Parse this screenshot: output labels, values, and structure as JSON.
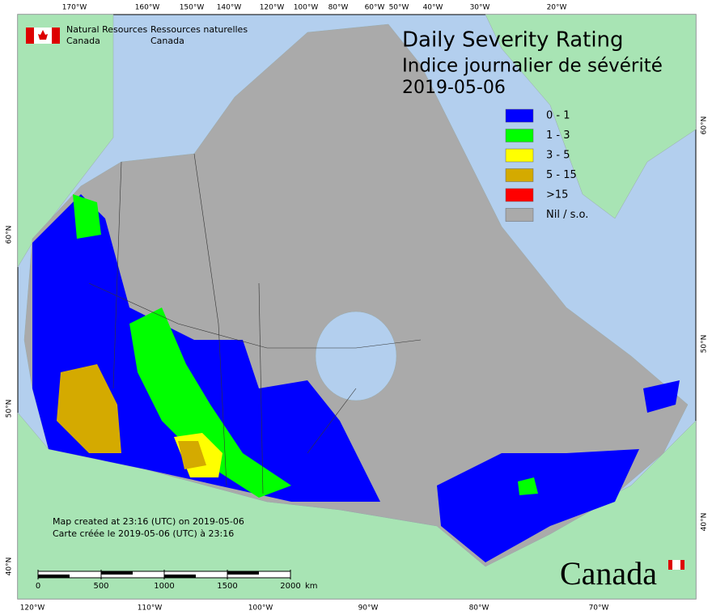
{
  "agency": {
    "en": [
      "Natural Resources",
      "Canada"
    ],
    "fr": [
      "Ressources naturelles",
      "Canada"
    ]
  },
  "title": [
    "Daily Severity Rating",
    "Indice journalier de sévérité",
    "2019-05-06"
  ],
  "legend": [
    {
      "label": "0 - 1",
      "color": "#0000ff"
    },
    {
      "label": "1 - 3",
      "color": "#00ff00"
    },
    {
      "label": "3 - 5",
      "color": "#ffff00"
    },
    {
      "label": "5 - 15",
      "color": "#d4aa00"
    },
    {
      "label": ">15",
      "color": "#ff0000"
    },
    {
      "label": "Nil / s.o.",
      "color": "#aaaaaa"
    }
  ],
  "graticule": {
    "top": [
      "170°W",
      "160°W",
      "150°W",
      "140°W",
      "120°W",
      "100°W",
      "80°W",
      "60°W",
      "50°W",
      "40°W",
      "30°W",
      "20°W"
    ],
    "bottom": [
      "120°W",
      "110°W",
      "100°W",
      "90°W",
      "80°W",
      "70°W"
    ],
    "left": [
      "60°N",
      "50°N",
      "40°N"
    ],
    "right": [
      "60°N",
      "50°N",
      "40°N"
    ]
  },
  "scale": {
    "ticks": [
      0,
      500,
      1000,
      1500,
      2000
    ],
    "unit": "km"
  },
  "notes": [
    "Map created at 23:16 (UTC) on 2019-05-06",
    "Carte créée le 2019-05-06 (UTC) à 23:16"
  ],
  "wordmark": "Canada"
}
